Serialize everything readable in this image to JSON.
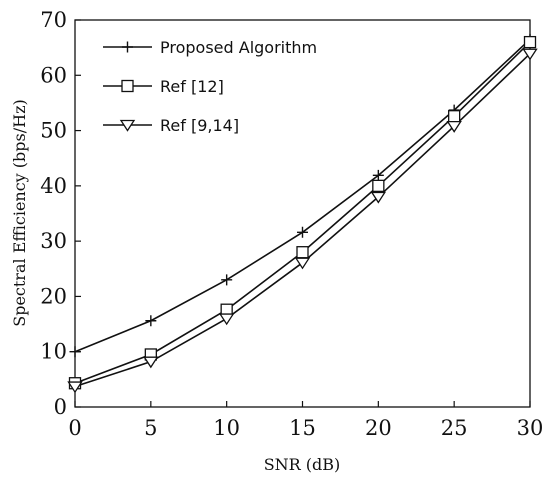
{
  "chart_data": {
    "type": "line",
    "title": "",
    "xlabel": "SNR (dB)",
    "ylabel": "Spectral Efficiency (bps/Hz)",
    "xlim": [
      0,
      30
    ],
    "ylim": [
      0,
      70
    ],
    "xticks": [
      0,
      5,
      10,
      15,
      20,
      25,
      30
    ],
    "yticks": [
      0,
      10,
      20,
      30,
      40,
      50,
      60,
      70
    ],
    "grid": false,
    "legend_position": "top-left",
    "series": [
      {
        "name": "Proposed Algorithm",
        "marker": "plus",
        "x": [
          0,
          5,
          10,
          15,
          20,
          25,
          30
        ],
        "y": [
          10.0,
          15.6,
          23.0,
          31.6,
          41.9,
          53.7,
          66.5
        ]
      },
      {
        "name": "Ref [12]",
        "marker": "square",
        "x": [
          0,
          5,
          10,
          15,
          20,
          25,
          30
        ],
        "y": [
          4.3,
          9.5,
          17.6,
          28.0,
          40.0,
          52.6,
          66.0
        ]
      },
      {
        "name": "Ref [9,14]",
        "marker": "triangle-down",
        "x": [
          0,
          5,
          10,
          15,
          20,
          25,
          30
        ],
        "y": [
          3.7,
          8.2,
          16.0,
          26.1,
          38.0,
          50.8,
          63.9
        ]
      }
    ]
  }
}
